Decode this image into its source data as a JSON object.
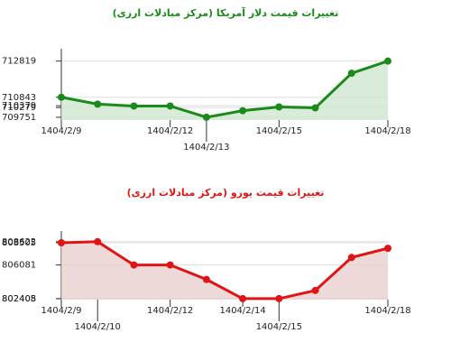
{
  "chart_data": [
    {
      "type": "line",
      "title": "تغییرات قیمت دلار آمریکا (مرکز مبادلات ارزی)",
      "categories": [
        "1404/2/9",
        null,
        null,
        "1404/2/12",
        "1404/2/13",
        null,
        "1404/2/15",
        null,
        null,
        "1404/2/18"
      ],
      "series": [
        {
          "color": "#1a8a1a",
          "values": [
            710843,
            710468,
            710365,
            710365,
            709751,
            710109,
            710314,
            710263,
            712155,
            712819
          ]
        }
      ],
      "ylim": [
        709600,
        713000
      ],
      "yticks": [
        712819,
        710843,
        710379,
        710279,
        709751
      ],
      "grid": true
    },
    {
      "type": "line",
      "title": "تغییرات قیمت یورو (مرکز مبادلات ارزی)",
      "categories": [
        "1404/2/9",
        "1404/2/10",
        null,
        "1404/2/12",
        null,
        "1404/2/14",
        "1404/2/15",
        null,
        null,
        "1404/2/18"
      ],
      "series": [
        {
          "color": "#e01414",
          "values": [
            808505,
            808622,
            806081,
            806081,
            804500,
            802405,
            802408,
            803300,
            806900,
            807900
          ]
        }
      ],
      "ylim": [
        802300,
        808800
      ],
      "yticks": [
        808622,
        808505,
        806081,
        802408,
        802405
      ],
      "grid": true
    }
  ]
}
